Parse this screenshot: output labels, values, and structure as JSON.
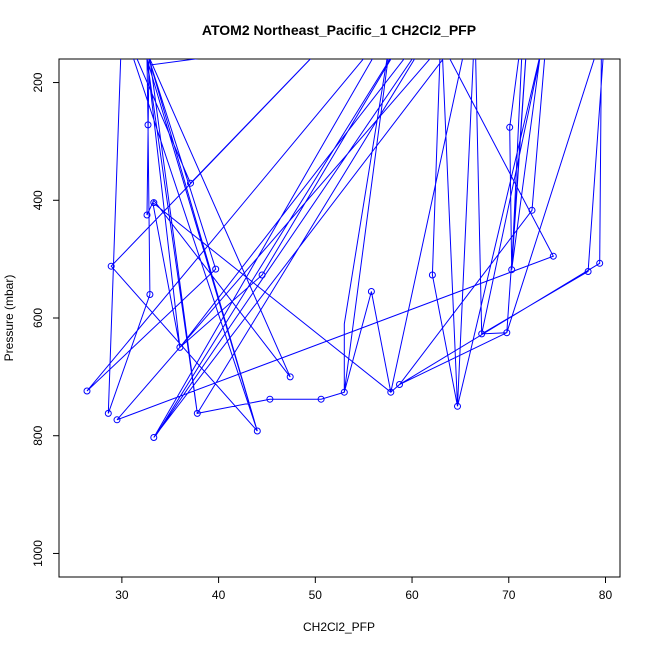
{
  "chart_data": {
    "type": "line",
    "title": "ATOM2 Northeast_Pacific_1 CH2Cl2_PFP",
    "xlabel": "CH2Cl2_PFP",
    "ylabel": "Pressure (mbar)",
    "xlim": [
      23.5,
      81.5
    ],
    "ylim": [
      1040,
      160
    ],
    "y_reversed": true,
    "x_ticks": [
      30,
      40,
      50,
      60,
      70,
      80
    ],
    "y_ticks": [
      200,
      400,
      600,
      800,
      1000
    ],
    "grid": false,
    "legend": "none",
    "series": [
      {
        "color": "#0000ff",
        "marker": "open-circle",
        "points": [
          [
            30.0,
            100.0
          ],
          [
            44.0,
            792.0
          ],
          [
            32.8,
            160.0
          ],
          [
            32.6,
            425.0
          ],
          [
            33.3,
            400.0
          ],
          [
            47.4,
            700.0
          ],
          [
            32.9,
            160.0
          ],
          [
            37.8,
            762.0
          ],
          [
            32.6,
            160.0
          ],
          [
            32.7,
            272.0
          ],
          [
            32.9,
            560.0
          ],
          [
            28.6,
            762.0
          ],
          [
            30.0,
            100.0
          ],
          [
            37.1,
            371.0
          ],
          [
            53.0,
            100.0
          ],
          [
            28.9,
            512.0
          ],
          [
            44.0,
            792.0
          ],
          [
            32.6,
            160.0
          ],
          [
            36.0,
            650.0
          ],
          [
            33.2,
            404.0
          ],
          [
            57.8,
            726.0
          ],
          [
            66.0,
            100.0
          ],
          [
            33.3,
            803.0
          ],
          [
            58.0,
            100.0
          ],
          [
            26.4,
            724.0
          ],
          [
            39.7,
            517.0
          ],
          [
            33.0,
            170.0
          ],
          [
            65.0,
            100.0
          ],
          [
            29.5,
            773.0
          ],
          [
            74.6,
            495.0
          ],
          [
            62.0,
            100.0
          ],
          [
            36.0,
            650.0
          ],
          [
            44.5,
            527.0
          ],
          [
            60.0,
            100.0
          ],
          [
            33.5,
            800.0
          ],
          [
            62.5,
            100.0
          ],
          [
            37.8,
            762.0
          ],
          [
            45.3,
            738.0
          ],
          [
            50.6,
            738.0
          ],
          [
            53.0,
            726.0
          ],
          [
            53.0,
            610.0
          ],
          [
            58.0,
            100.0
          ],
          [
            53.0,
            726.0
          ],
          [
            55.8,
            555.0
          ],
          [
            57.8,
            726.0
          ],
          [
            58.7,
            713.0
          ],
          [
            72.4,
            417.0
          ],
          [
            74.0,
            100.0
          ],
          [
            64.7,
            750.0
          ],
          [
            62.1,
            527.0
          ],
          [
            63.0,
            100.0
          ],
          [
            64.7,
            750.0
          ],
          [
            66.5,
            100.0
          ],
          [
            67.2,
            627.0
          ],
          [
            78.2,
            521.0
          ],
          [
            80.0,
            100.0
          ],
          [
            69.8,
            625.0
          ],
          [
            72.0,
            100.0
          ],
          [
            70.3,
            518.0
          ],
          [
            70.1,
            276.0
          ],
          [
            71.5,
            100.0
          ],
          [
            70.3,
            518.0
          ],
          [
            73.2,
            160.0
          ],
          [
            67.2,
            627.0
          ],
          [
            69.8,
            625.0
          ],
          [
            58.7,
            713.0
          ],
          [
            79.4,
            507.0
          ],
          [
            79.6,
            100.0
          ]
        ],
        "markers": [
          [
            32.7,
            272.0
          ],
          [
            37.1,
            371.0
          ],
          [
            33.3,
            404.0
          ],
          [
            32.6,
            425.0
          ],
          [
            74.6,
            495.0
          ],
          [
            79.4,
            507.0
          ],
          [
            28.9,
            512.0
          ],
          [
            39.7,
            517.0
          ],
          [
            70.3,
            518.0
          ],
          [
            78.2,
            521.0
          ],
          [
            44.5,
            527.0
          ],
          [
            62.1,
            527.0
          ],
          [
            55.8,
            555.0
          ],
          [
            32.9,
            560.0
          ],
          [
            69.8,
            625.0
          ],
          [
            67.2,
            627.0
          ],
          [
            36.0,
            650.0
          ],
          [
            47.4,
            700.0
          ],
          [
            58.7,
            713.0
          ],
          [
            26.4,
            724.0
          ],
          [
            53.0,
            726.0
          ],
          [
            57.8,
            726.0
          ],
          [
            45.3,
            738.0
          ],
          [
            50.6,
            738.0
          ],
          [
            64.7,
            750.0
          ],
          [
            28.6,
            762.0
          ],
          [
            37.8,
            762.0
          ],
          [
            29.5,
            773.0
          ],
          [
            44.0,
            792.0
          ],
          [
            33.3,
            803.0
          ],
          [
            70.1,
            276.0
          ],
          [
            72.4,
            417.0
          ]
        ]
      }
    ]
  }
}
